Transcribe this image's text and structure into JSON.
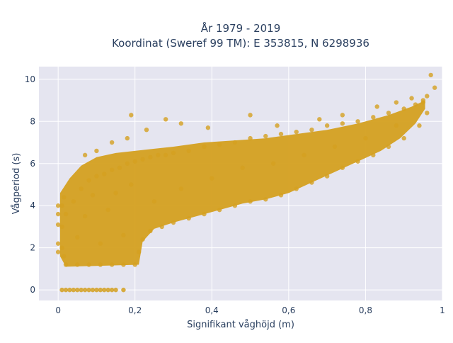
{
  "chart_data": {
    "type": "scatter",
    "title_lines": [
      "År 1979 - 2019",
      "Koordinat (Sweref 99 TM): E 353815, N 6298936"
    ],
    "xlabel": "Signifikant våghöjd (m)",
    "ylabel": "Vågperiod (s)",
    "xlim": [
      -0.05,
      1.0
    ],
    "ylim": [
      -0.5,
      10.6
    ],
    "x_ticks": [
      0,
      0.2,
      0.4,
      0.6,
      0.8,
      1
    ],
    "x_tick_labels": [
      "0",
      "0,2",
      "0,4",
      "0,6",
      "0,8",
      "1"
    ],
    "y_ticks": [
      0,
      2,
      4,
      6,
      8,
      10
    ],
    "y_tick_labels": [
      "0",
      "2",
      "4",
      "6",
      "8",
      "10"
    ],
    "grid": true,
    "marker_color": "#d4a020",
    "background_color": "#e5e5f0",
    "series": [
      {
        "points": [
          [
            0.02,
            3.6
          ],
          [
            0.04,
            4.2
          ],
          [
            0.06,
            4.8
          ],
          [
            0.08,
            5.2
          ],
          [
            0.1,
            5.4
          ],
          [
            0.12,
            5.5
          ],
          [
            0.14,
            5.7
          ],
          [
            0.16,
            5.8
          ],
          [
            0.18,
            6.0
          ],
          [
            0.2,
            6.1
          ],
          [
            0.22,
            6.2
          ],
          [
            0.24,
            6.3
          ],
          [
            0.26,
            6.4
          ],
          [
            0.28,
            6.4
          ],
          [
            0.3,
            6.5
          ],
          [
            0.34,
            6.6
          ],
          [
            0.38,
            6.8
          ],
          [
            0.42,
            6.9
          ],
          [
            0.46,
            7.0
          ],
          [
            0.5,
            7.2
          ],
          [
            0.54,
            7.3
          ],
          [
            0.58,
            7.4
          ],
          [
            0.62,
            7.5
          ],
          [
            0.66,
            7.6
          ],
          [
            0.7,
            7.8
          ],
          [
            0.74,
            7.9
          ],
          [
            0.78,
            8.0
          ],
          [
            0.82,
            8.2
          ],
          [
            0.86,
            8.4
          ],
          [
            0.9,
            8.6
          ],
          [
            0.93,
            8.8
          ],
          [
            0.95,
            9.0
          ],
          [
            0.02,
            1.2
          ],
          [
            0.05,
            1.2
          ],
          [
            0.08,
            1.2
          ],
          [
            0.11,
            1.2
          ],
          [
            0.14,
            1.2
          ],
          [
            0.17,
            1.2
          ],
          [
            0.2,
            1.2
          ],
          [
            0.21,
            1.8
          ],
          [
            0.22,
            2.4
          ],
          [
            0.24,
            2.8
          ],
          [
            0.27,
            3.0
          ],
          [
            0.3,
            3.2
          ],
          [
            0.34,
            3.4
          ],
          [
            0.38,
            3.6
          ],
          [
            0.42,
            3.8
          ],
          [
            0.46,
            4.0
          ],
          [
            0.5,
            4.2
          ],
          [
            0.54,
            4.3
          ],
          [
            0.58,
            4.5
          ],
          [
            0.62,
            4.8
          ],
          [
            0.66,
            5.1
          ],
          [
            0.7,
            5.4
          ],
          [
            0.74,
            5.8
          ],
          [
            0.78,
            6.1
          ],
          [
            0.82,
            6.4
          ],
          [
            0.86,
            6.8
          ],
          [
            0.9,
            7.2
          ],
          [
            0.94,
            7.8
          ],
          [
            0.96,
            8.4
          ],
          [
            0.01,
            2.0
          ],
          [
            0.01,
            3.0
          ],
          [
            0.01,
            4.0
          ],
          [
            0.015,
            4.4
          ],
          [
            0.015,
            1.6
          ],
          [
            0.05,
            2.5
          ],
          [
            0.07,
            3.5
          ],
          [
            0.09,
            4.5
          ],
          [
            0.11,
            2.2
          ],
          [
            0.13,
            3.8
          ],
          [
            0.15,
            4.6
          ],
          [
            0.17,
            2.6
          ],
          [
            0.19,
            5.0
          ],
          [
            0.25,
            4.2
          ],
          [
            0.32,
            4.8
          ],
          [
            0.4,
            5.3
          ],
          [
            0.48,
            5.8
          ],
          [
            0.56,
            6.0
          ],
          [
            0.64,
            6.4
          ],
          [
            0.72,
            6.8
          ],
          [
            0.8,
            7.2
          ],
          [
            0.88,
            7.8
          ],
          [
            0.07,
            6.4
          ],
          [
            0.1,
            6.6
          ],
          [
            0.14,
            7.0
          ],
          [
            0.18,
            7.2
          ],
          [
            0.19,
            8.3
          ],
          [
            0.23,
            7.6
          ],
          [
            0.28,
            8.1
          ],
          [
            0.32,
            7.9
          ],
          [
            0.39,
            7.7
          ],
          [
            0.5,
            8.3
          ],
          [
            0.57,
            7.8
          ],
          [
            0.68,
            8.1
          ],
          [
            0.74,
            8.3
          ],
          [
            0.83,
            8.7
          ],
          [
            0.88,
            8.9
          ],
          [
            0.92,
            9.1
          ],
          [
            0.97,
            10.2
          ],
          [
            0.98,
            9.6
          ],
          [
            0.96,
            9.2
          ],
          [
            0.95,
            8.9
          ],
          [
            0.0,
            3.1
          ],
          [
            0.0,
            3.6
          ],
          [
            0.0,
            4.0
          ],
          [
            0.0,
            2.2
          ],
          [
            0.0,
            1.8
          ]
        ],
        "zero_points": [
          [
            0.01,
            0
          ],
          [
            0.02,
            0
          ],
          [
            0.03,
            0
          ],
          [
            0.04,
            0
          ],
          [
            0.05,
            0
          ],
          [
            0.06,
            0
          ],
          [
            0.07,
            0
          ],
          [
            0.08,
            0
          ],
          [
            0.09,
            0
          ],
          [
            0.1,
            0
          ],
          [
            0.11,
            0
          ],
          [
            0.12,
            0
          ],
          [
            0.13,
            0
          ],
          [
            0.14,
            0
          ],
          [
            0.15,
            0
          ],
          [
            0.17,
            0
          ]
        ]
      }
    ]
  }
}
